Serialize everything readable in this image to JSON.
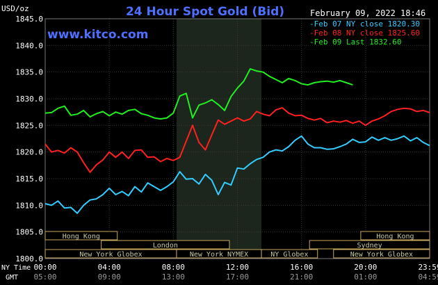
{
  "chart_data": {
    "type": "line",
    "title": "24 Hour Spot Gold (Bid)",
    "site": "www.kitco.com",
    "ylabel": "USD/oz",
    "date_stamp": "February 09, 2022 18:46",
    "ylim": [
      1800,
      1845
    ],
    "yticks": [
      "1845.0",
      "1840.0",
      "1835.0",
      "1830.0",
      "1825.0",
      "1820.0",
      "1815.0",
      "1810.0",
      "1805.0",
      "1800.0"
    ],
    "x_row_labels": [
      "NY Time",
      "GMT"
    ],
    "ny_ticks": [
      "00:00",
      "04:00",
      "08:00",
      "12:00",
      "16:00",
      "20:00",
      "23:59"
    ],
    "gmt_ticks": [
      "05:00",
      "09:00",
      "13:00",
      "17:00",
      "21:00",
      "01:00",
      "04:59"
    ],
    "xlim_hours": [
      0,
      24
    ],
    "highlight_hours": [
      8.2,
      13.5
    ],
    "legend": [
      {
        "text": "-Feb 07 NY close 1820.30",
        "color": "#33ccff"
      },
      {
        "text": "-Feb 08 NY close 1825.60",
        "color": "#ff2020"
      },
      {
        "text": "-Feb 09 Last 1832.60",
        "color": "#22ee22"
      }
    ],
    "sessions": [
      {
        "label": "Hong Kong",
        "start": 0,
        "end": 4.5
      },
      {
        "label": "London",
        "start": 3.5,
        "end": 11.5
      },
      {
        "label": "New York Globex",
        "start": 0,
        "end": 8.2
      },
      {
        "label": "New York NYMEX",
        "start": 8.2,
        "end": 13.5
      },
      {
        "label": "NY Globex",
        "start": 13.5,
        "end": 17.0
      },
      {
        "label": "Hong Kong",
        "start": 19.7,
        "end": 24
      },
      {
        "label": "Sydney",
        "start": 16.5,
        "end": 24
      },
      {
        "label": "New York Globex",
        "start": 18.0,
        "end": 24
      }
    ],
    "series": [
      {
        "color": "#33ccff",
        "x": [
          0,
          0.4,
          0.8,
          1.2,
          1.6,
          2.0,
          2.4,
          2.8,
          3.2,
          3.6,
          4.0,
          4.4,
          4.8,
          5.2,
          5.6,
          6.0,
          6.4,
          6.8,
          7.2,
          7.6,
          8.0,
          8.4,
          8.8,
          9.2,
          9.6,
          10.0,
          10.4,
          10.8,
          11.2,
          11.6,
          12.0,
          12.4,
          12.8,
          13.2,
          13.6,
          14.0,
          14.4,
          14.8,
          15.2,
          15.6,
          16.0,
          16.4,
          16.8,
          17.2,
          17.6,
          18.0,
          18.4,
          18.8,
          19.2,
          19.6,
          20.0,
          20.4,
          20.8,
          21.2,
          21.6,
          22.0,
          22.4,
          22.8,
          23.2,
          23.6,
          24.0
        ],
        "y": [
          1810.3,
          1810.0,
          1810.8,
          1809.5,
          1809.6,
          1808.5,
          1810.0,
          1811.0,
          1811.2,
          1812.0,
          1813.2,
          1812.0,
          1812.6,
          1811.8,
          1813.5,
          1812.5,
          1814.2,
          1813.5,
          1812.8,
          1813.5,
          1814.4,
          1816.3,
          1814.9,
          1815.0,
          1814.0,
          1815.8,
          1814.7,
          1812.0,
          1814.3,
          1813.8,
          1817.0,
          1816.8,
          1817.8,
          1818.6,
          1819.0,
          1820.0,
          1820.4,
          1820.2,
          1821.0,
          1822.2,
          1823.0,
          1821.5,
          1820.8,
          1820.8,
          1820.5,
          1820.6,
          1821.0,
          1821.5,
          1822.4,
          1821.8,
          1821.9,
          1822.8,
          1822.2,
          1822.7,
          1822.2,
          1822.5,
          1823.0,
          1822.1,
          1822.7,
          1821.8,
          1821.2
        ]
      },
      {
        "color": "#ff2020",
        "x": [
          0,
          0.4,
          0.8,
          1.2,
          1.6,
          2.0,
          2.4,
          2.8,
          3.2,
          3.6,
          4.0,
          4.4,
          4.8,
          5.2,
          5.6,
          6.0,
          6.4,
          6.8,
          7.2,
          7.6,
          8.0,
          8.4,
          8.8,
          9.2,
          9.6,
          10.0,
          10.4,
          10.8,
          11.2,
          11.6,
          12.0,
          12.4,
          12.8,
          13.2,
          13.6,
          14.0,
          14.4,
          14.8,
          15.2,
          15.6,
          16.0,
          16.4,
          16.8,
          17.2,
          17.6,
          18.0,
          18.4,
          18.8,
          19.2,
          19.6,
          20.0,
          20.4,
          20.8,
          21.2,
          21.6,
          22.0,
          22.4,
          22.8,
          23.2,
          23.6,
          24.0
        ],
        "y": [
          1821.5,
          1820.0,
          1820.3,
          1819.8,
          1820.8,
          1820.0,
          1818.0,
          1816.2,
          1817.6,
          1818.5,
          1820.0,
          1819.0,
          1820.0,
          1818.8,
          1820.3,
          1820.4,
          1819.0,
          1819.1,
          1818.2,
          1818.8,
          1818.4,
          1819.0,
          1822.0,
          1825.0,
          1821.8,
          1820.4,
          1823.2,
          1826.0,
          1825.2,
          1825.8,
          1826.4,
          1825.8,
          1826.2,
          1827.6,
          1827.1,
          1826.8,
          1827.9,
          1828.3,
          1827.3,
          1826.8,
          1826.9,
          1826.3,
          1826.0,
          1826.3,
          1825.5,
          1825.8,
          1825.6,
          1825.9,
          1825.4,
          1825.8,
          1825.0,
          1825.8,
          1826.2,
          1826.8,
          1827.6,
          1828.0,
          1828.2,
          1828.1,
          1827.6,
          1827.8,
          1827.4
        ]
      },
      {
        "color": "#22ee22",
        "x": [
          0,
          0.4,
          0.8,
          1.2,
          1.6,
          2.0,
          2.4,
          2.8,
          3.2,
          3.6,
          4.0,
          4.4,
          4.8,
          5.2,
          5.6,
          6.0,
          6.4,
          6.8,
          7.2,
          7.6,
          8.0,
          8.4,
          8.8,
          9.2,
          9.6,
          10.0,
          10.4,
          10.8,
          11.2,
          11.6,
          12.0,
          12.4,
          12.8,
          13.2,
          13.6,
          14.0,
          14.4,
          14.8,
          15.2,
          15.6,
          16.0,
          16.4,
          16.8,
          17.2,
          17.6,
          18.0,
          18.4,
          18.8,
          19.2
        ],
        "y": [
          1827.3,
          1827.4,
          1828.2,
          1828.6,
          1826.9,
          1827.1,
          1827.8,
          1826.6,
          1827.2,
          1827.6,
          1826.8,
          1827.5,
          1827.1,
          1827.8,
          1828.0,
          1827.2,
          1826.9,
          1826.4,
          1826.2,
          1826.4,
          1827.3,
          1830.5,
          1831.0,
          1826.4,
          1828.8,
          1829.2,
          1829.8,
          1828.9,
          1827.8,
          1830.4,
          1832.0,
          1833.3,
          1835.6,
          1835.2,
          1835.0,
          1834.2,
          1833.6,
          1833.0,
          1833.8,
          1833.4,
          1832.8,
          1832.6,
          1833.0,
          1833.2,
          1833.3,
          1833.1,
          1833.4,
          1833.0,
          1832.6
        ]
      }
    ]
  }
}
